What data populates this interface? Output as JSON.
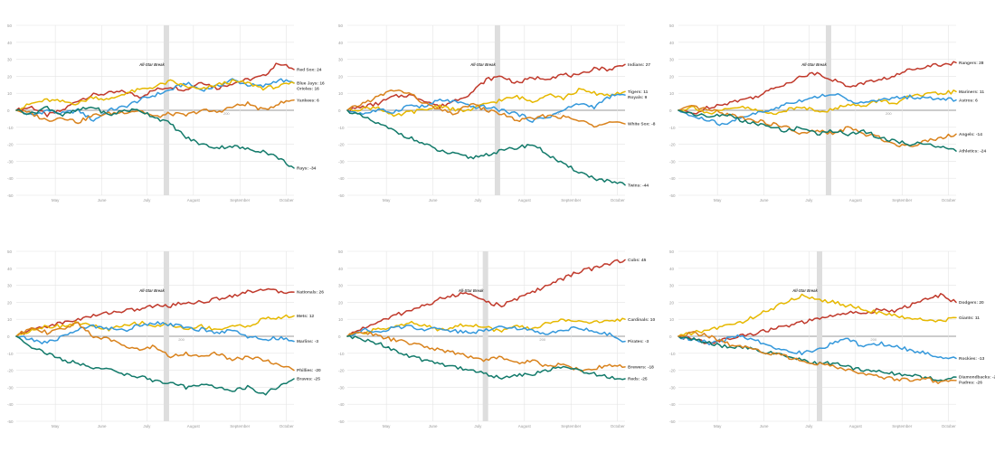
{
  "colors": {
    "grid": "#e4e4e4",
    "zero": "#9a9a9a",
    "break": "#dedede",
    "tick": "#9a9a9a",
    "label": "#555555"
  },
  "chart_data": [
    {
      "type": "line",
      "ylim": [
        -50,
        50
      ],
      "yticks": [
        50,
        40,
        30,
        20,
        10,
        0,
        -10,
        -20,
        -30,
        -40,
        -50
      ],
      "xlim": [
        0,
        185
      ],
      "xticks": [
        {
          "label": "May",
          "x": 26
        },
        {
          "label": "June",
          "x": 57
        },
        {
          "label": "July",
          "x": 87
        },
        {
          "label": "August",
          "x": 118
        },
        {
          "label": "September",
          "x": 149
        },
        {
          "label": "October",
          "x": 180
        }
      ],
      "break_x": 100,
      "break_label": "All-Star Break",
      "g200_x": 140,
      "g200_label": "200",
      "series": [
        {
          "label": "Red Sox: 24",
          "color": "#c0392b",
          "y": [
            0,
            2,
            -3,
            0,
            6,
            9,
            10,
            11,
            8,
            12,
            14,
            12,
            17,
            13,
            16,
            18,
            20,
            28,
            24
          ]
        },
        {
          "label": "Blue Jays: 16",
          "color": "#3498db",
          "y": [
            0,
            -3,
            0,
            -2,
            0,
            -6,
            0,
            2,
            6,
            9,
            12,
            16,
            12,
            14,
            18,
            15,
            14,
            18,
            16
          ]
        },
        {
          "label": "Orioles: 16",
          "color": "#e6b800",
          "y": [
            0,
            4,
            6,
            5,
            4,
            8,
            6,
            10,
            12,
            14,
            17,
            14,
            12,
            15,
            17,
            16,
            13,
            14,
            16
          ]
        },
        {
          "label": "Yankees: 6",
          "color": "#d9821c",
          "y": [
            0,
            -2,
            -6,
            -4,
            -7,
            -3,
            -2,
            -1,
            0,
            -4,
            -2,
            -3,
            0,
            -1,
            2,
            4,
            0,
            4,
            6
          ]
        },
        {
          "label": "Rays: -34",
          "color": "#127a6a",
          "y": [
            0,
            -2,
            2,
            -3,
            0,
            2,
            -3,
            0,
            0,
            -4,
            -8,
            -16,
            -20,
            -22,
            -21,
            -23,
            -24,
            -28,
            -34
          ]
        }
      ]
    },
    {
      "type": "line",
      "ylim": [
        -50,
        50
      ],
      "yticks": [
        50,
        40,
        30,
        20,
        10,
        0,
        -10,
        -20,
        -30,
        -40,
        -50
      ],
      "xlim": [
        0,
        185
      ],
      "xticks": [
        {
          "label": "May",
          "x": 26
        },
        {
          "label": "June",
          "x": 57
        },
        {
          "label": "July",
          "x": 87
        },
        {
          "label": "August",
          "x": 118
        },
        {
          "label": "September",
          "x": 149
        },
        {
          "label": "October",
          "x": 180
        }
      ],
      "break_x": 100,
      "break_label": "All-Star Break",
      "g200_x": 140,
      "g200_label": "200",
      "series": [
        {
          "label": "Indians: 27",
          "color": "#c0392b",
          "y": [
            0,
            2,
            4,
            8,
            9,
            6,
            2,
            6,
            10,
            18,
            20,
            16,
            19,
            19,
            21,
            20,
            25,
            24,
            27
          ]
        },
        {
          "label": "Tigers: 11",
          "color": "#e6b800",
          "y": [
            0,
            1,
            2,
            -4,
            -1,
            0,
            3,
            0,
            0,
            4,
            6,
            8,
            5,
            10,
            7,
            12,
            10,
            9,
            11
          ]
        },
        {
          "label": "Royals: 9",
          "color": "#3498db",
          "y": [
            0,
            -2,
            0,
            -1,
            3,
            2,
            6,
            5,
            2,
            2,
            0,
            -2,
            -6,
            -4,
            0,
            4,
            2,
            8,
            9
          ]
        },
        {
          "label": "White Sox: -8",
          "color": "#d9821c",
          "y": [
            0,
            4,
            8,
            12,
            10,
            4,
            0,
            -2,
            4,
            0,
            -2,
            -6,
            -5,
            -3,
            -4,
            -6,
            -9,
            -6,
            -8
          ]
        },
        {
          "label": "Twins: -44",
          "color": "#127a6a",
          "y": [
            0,
            -4,
            -8,
            -12,
            -16,
            -20,
            -24,
            -26,
            -28,
            -26,
            -24,
            -22,
            -20,
            -26,
            -32,
            -36,
            -40,
            -42,
            -44
          ]
        }
      ]
    },
    {
      "type": "line",
      "ylim": [
        -50,
        50
      ],
      "yticks": [
        50,
        40,
        30,
        20,
        10,
        0,
        -10,
        -20,
        -30,
        -40,
        -50
      ],
      "xlim": [
        0,
        185
      ],
      "xticks": [
        {
          "label": "May",
          "x": 26
        },
        {
          "label": "June",
          "x": 57
        },
        {
          "label": "July",
          "x": 87
        },
        {
          "label": "August",
          "x": 118
        },
        {
          "label": "September",
          "x": 149
        },
        {
          "label": "October",
          "x": 180
        }
      ],
      "break_x": 100,
      "break_label": "All-Star Break",
      "g200_x": 140,
      "g200_label": "200",
      "series": [
        {
          "label": "Rangers: 28",
          "color": "#c0392b",
          "y": [
            0,
            -2,
            2,
            4,
            6,
            8,
            12,
            16,
            20,
            22,
            18,
            14,
            16,
            18,
            20,
            24,
            26,
            27,
            28
          ]
        },
        {
          "label": "Mariners: 11",
          "color": "#e6b800",
          "y": [
            0,
            2,
            -2,
            0,
            2,
            0,
            -2,
            0,
            2,
            0,
            0,
            4,
            2,
            6,
            4,
            8,
            9,
            10,
            11
          ]
        },
        {
          "label": "Astros: 6",
          "color": "#3498db",
          "y": [
            0,
            -4,
            -6,
            -9,
            -4,
            -2,
            0,
            4,
            6,
            8,
            10,
            6,
            4,
            6,
            7,
            8,
            7,
            7,
            6
          ]
        },
        {
          "label": "Angels: -14",
          "color": "#d9821c",
          "y": [
            0,
            2,
            0,
            -2,
            -4,
            -6,
            -8,
            -10,
            -14,
            -12,
            -14,
            -10,
            -14,
            -16,
            -20,
            -21,
            -18,
            -16,
            -14
          ]
        },
        {
          "label": "Athletics: -24",
          "color": "#127a6a",
          "y": [
            0,
            -2,
            -4,
            -2,
            -6,
            -8,
            -10,
            -12,
            -10,
            -14,
            -12,
            -14,
            -12,
            -16,
            -18,
            -20,
            -19,
            -22,
            -24
          ]
        }
      ]
    },
    {
      "type": "line",
      "ylim": [
        -50,
        50
      ],
      "yticks": [
        50,
        40,
        30,
        20,
        10,
        0,
        -10,
        -20,
        -30,
        -40,
        -50
      ],
      "xlim": [
        0,
        185
      ],
      "xticks": [
        {
          "label": "May",
          "x": 26
        },
        {
          "label": "June",
          "x": 57
        },
        {
          "label": "July",
          "x": 87
        },
        {
          "label": "August",
          "x": 118
        },
        {
          "label": "September",
          "x": 149
        },
        {
          "label": "October",
          "x": 180
        }
      ],
      "break_x": 100,
      "break_label": "All-Star Break",
      "g200_x": 110,
      "g200_label": "200",
      "series": [
        {
          "label": "Nationals: 26",
          "color": "#c0392b",
          "y": [
            0,
            4,
            6,
            8,
            10,
            12,
            14,
            15,
            16,
            18,
            18,
            20,
            20,
            22,
            24,
            26,
            28,
            26,
            26
          ]
        },
        {
          "label": "Mets: 12",
          "color": "#e6b800",
          "y": [
            0,
            4,
            6,
            6,
            8,
            6,
            4,
            6,
            8,
            6,
            7,
            4,
            6,
            4,
            6,
            6,
            10,
            11,
            12
          ]
        },
        {
          "label": "Marlins: -3",
          "color": "#3498db",
          "y": [
            0,
            -2,
            -4,
            0,
            4,
            6,
            5,
            3,
            7,
            8,
            7,
            5,
            4,
            2,
            4,
            0,
            -2,
            -1,
            -3
          ]
        },
        {
          "label": "Phillies: -20",
          "color": "#d9821c",
          "y": [
            0,
            6,
            2,
            4,
            8,
            0,
            -2,
            -5,
            -8,
            -6,
            -12,
            -10,
            -12,
            -10,
            -14,
            -12,
            -14,
            -16,
            -20
          ]
        },
        {
          "label": "Braves: -25",
          "color": "#127a6a",
          "y": [
            0,
            -6,
            -10,
            -14,
            -16,
            -18,
            -20,
            -22,
            -24,
            -26,
            -28,
            -30,
            -28,
            -30,
            -32,
            -30,
            -34,
            -30,
            -25
          ]
        }
      ]
    },
    {
      "type": "line",
      "ylim": [
        -50,
        50
      ],
      "yticks": [
        50,
        40,
        30,
        20,
        10,
        0,
        -10,
        -20,
        -30,
        -40,
        -50
      ],
      "xlim": [
        0,
        185
      ],
      "xticks": [
        {
          "label": "May",
          "x": 26
        },
        {
          "label": "June",
          "x": 57
        },
        {
          "label": "July",
          "x": 87
        },
        {
          "label": "August",
          "x": 118
        },
        {
          "label": "September",
          "x": 149
        },
        {
          "label": "October",
          "x": 180
        }
      ],
      "break_x": 92,
      "break_label": "All-Star Break",
      "g200_x": 130,
      "g200_label": "200",
      "series": [
        {
          "label": "Cubs: 45",
          "color": "#c0392b",
          "y": [
            0,
            5,
            8,
            12,
            15,
            18,
            22,
            24,
            26,
            20,
            18,
            22,
            26,
            30,
            34,
            38,
            40,
            43,
            45
          ]
        },
        {
          "label": "Cardinals: 10",
          "color": "#e6b800",
          "y": [
            0,
            2,
            4,
            6,
            8,
            6,
            4,
            6,
            7,
            5,
            3,
            6,
            4,
            8,
            10,
            9,
            8,
            9,
            10
          ]
        },
        {
          "label": "Pirates: -3",
          "color": "#3498db",
          "y": [
            0,
            4,
            2,
            5,
            6,
            4,
            5,
            3,
            2,
            4,
            6,
            5,
            3,
            2,
            4,
            5,
            3,
            1,
            -3
          ]
        },
        {
          "label": "Brewers: -18",
          "color": "#d9821c",
          "y": [
            0,
            3,
            0,
            -2,
            -4,
            -6,
            -8,
            -10,
            -12,
            -14,
            -12,
            -16,
            -14,
            -18,
            -16,
            -20,
            -19,
            -17,
            -18
          ]
        },
        {
          "label": "Reds: -25",
          "color": "#127a6a",
          "y": [
            0,
            -2,
            -4,
            -8,
            -12,
            -14,
            -16,
            -18,
            -20,
            -22,
            -25,
            -23,
            -22,
            -20,
            -18,
            -20,
            -22,
            -24,
            -25
          ]
        }
      ]
    },
    {
      "type": "line",
      "ylim": [
        -50,
        50
      ],
      "yticks": [
        50,
        40,
        30,
        20,
        10,
        0,
        -10,
        -20,
        -30,
        -40,
        -50
      ],
      "xlim": [
        0,
        185
      ],
      "xticks": [
        {
          "label": "May",
          "x": 26
        },
        {
          "label": "June",
          "x": 57
        },
        {
          "label": "July",
          "x": 87
        },
        {
          "label": "August",
          "x": 118
        },
        {
          "label": "September",
          "x": 149
        },
        {
          "label": "October",
          "x": 180
        }
      ],
      "break_x": 94,
      "break_label": "All-Star Break",
      "g200_x": 130,
      "g200_label": "200",
      "series": [
        {
          "label": "Dodgers: 20",
          "color": "#c0392b",
          "y": [
            0,
            -2,
            -4,
            -2,
            0,
            2,
            4,
            6,
            8,
            10,
            12,
            14,
            13,
            16,
            15,
            18,
            22,
            24,
            20
          ]
        },
        {
          "label": "Giants: 11",
          "color": "#e6b800",
          "y": [
            0,
            2,
            4,
            6,
            8,
            12,
            16,
            20,
            24,
            22,
            20,
            18,
            16,
            14,
            12,
            10,
            10,
            9,
            11
          ]
        },
        {
          "label": "Rockies: -13",
          "color": "#3498db",
          "y": [
            0,
            -2,
            -4,
            -2,
            0,
            -2,
            -6,
            -8,
            -10,
            -8,
            -4,
            -2,
            -6,
            -4,
            -6,
            -8,
            -10,
            -12,
            -13
          ]
        },
        {
          "label": "Diamondbacks: -24",
          "color": "#127a6a",
          "y": [
            0,
            -2,
            -4,
            -6,
            -6,
            -8,
            -10,
            -12,
            -14,
            -16,
            -16,
            -18,
            -20,
            -20,
            -22,
            -23,
            -24,
            -26,
            -24
          ]
        },
        {
          "label": "Padres: -26",
          "color": "#d9821c",
          "y": [
            0,
            2,
            0,
            -4,
            -6,
            -8,
            -10,
            -12,
            -14,
            -16,
            -18,
            -20,
            -22,
            -24,
            -25,
            -26,
            -25,
            -27,
            -26
          ]
        }
      ]
    }
  ]
}
